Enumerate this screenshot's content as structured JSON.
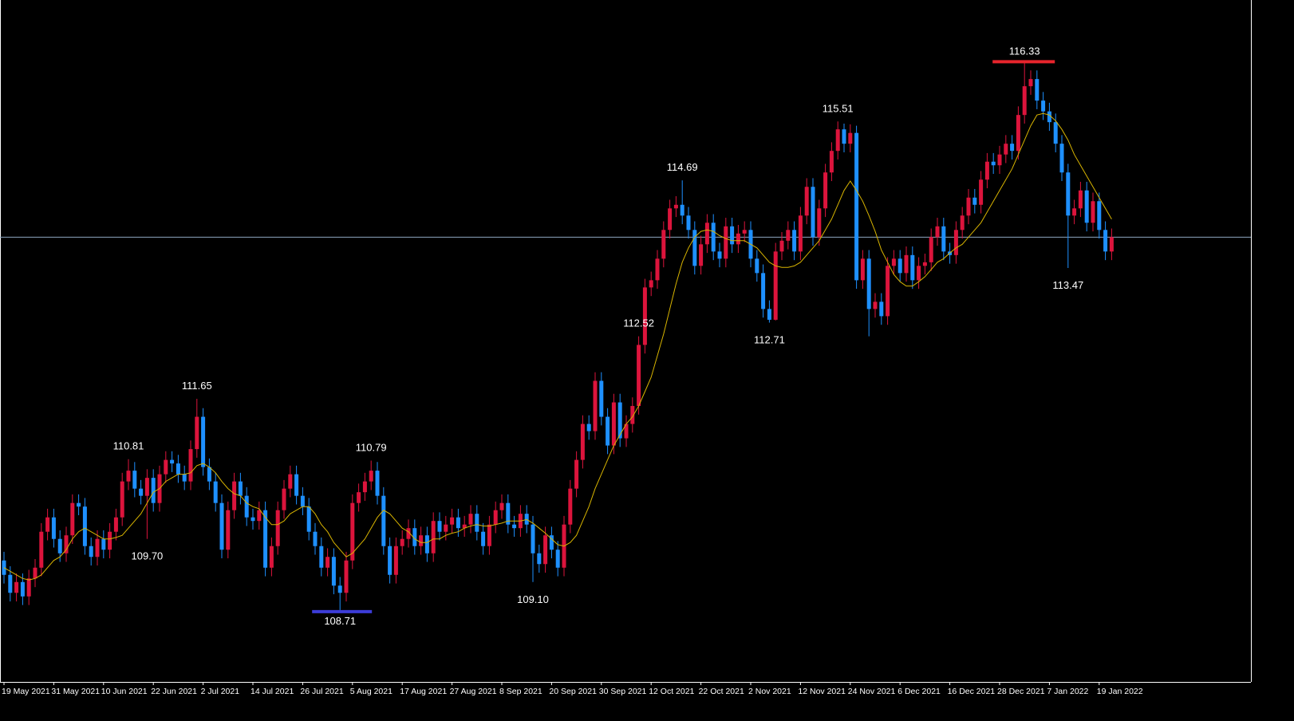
{
  "chart_data": {
    "type": "candlestick",
    "up_color": "#dc143c",
    "down_color": "#1e90ff",
    "ylim": [
      107.71,
      117.2
    ],
    "categories": [
      "19 May 2021",
      null,
      null,
      null,
      null,
      null,
      null,
      null,
      "31 May 2021",
      null,
      null,
      null,
      null,
      null,
      null,
      null,
      "10 Jun 2021",
      null,
      null,
      null,
      null,
      null,
      null,
      null,
      "22 Jun 2021",
      null,
      null,
      null,
      null,
      null,
      null,
      null,
      "2 Jul 2021",
      null,
      null,
      null,
      null,
      null,
      null,
      null,
      "14 Jul 2021",
      null,
      null,
      null,
      null,
      null,
      null,
      null,
      "26 Jul 2021",
      null,
      null,
      null,
      null,
      null,
      null,
      null,
      "5 Aug 2021",
      null,
      null,
      null,
      null,
      null,
      null,
      null,
      "17 Aug 2021",
      null,
      null,
      null,
      null,
      null,
      null,
      null,
      "27 Aug 2021",
      null,
      null,
      null,
      null,
      null,
      null,
      null,
      "8 Sep 2021",
      null,
      null,
      null,
      null,
      null,
      null,
      null,
      "20 Sep 2021",
      null,
      null,
      null,
      null,
      null,
      null,
      null,
      "30 Sep 2021",
      null,
      null,
      null,
      null,
      null,
      null,
      null,
      "12 Oct 2021",
      null,
      null,
      null,
      null,
      null,
      null,
      null,
      "22 Oct 2021",
      null,
      null,
      null,
      null,
      null,
      null,
      null,
      "2 Nov 2021",
      null,
      null,
      null,
      null,
      null,
      null,
      null,
      "12 Nov 2021",
      null,
      null,
      null,
      null,
      null,
      null,
      null,
      "24 Nov 2021",
      null,
      null,
      null,
      null,
      null,
      null,
      null,
      "6 Dec 2021",
      null,
      null,
      null,
      null,
      null,
      null,
      null,
      "16 Dec 2021",
      null,
      null,
      null,
      null,
      null,
      null,
      null,
      "28 Dec 2021",
      null,
      null,
      null,
      null,
      null,
      null,
      null,
      "7 Jan 2022",
      null,
      null,
      null,
      null,
      null,
      null,
      null,
      "19 Jan 2022",
      null,
      null
    ],
    "open": [
      109.4,
      109.2,
      108.95,
      109.1,
      108.9,
      109.15,
      109.3,
      109.8,
      110.0,
      109.7,
      109.5,
      109.75,
      110.2,
      110.15,
      109.6,
      109.45,
      109.7,
      109.55,
      109.8,
      110.0,
      110.5,
      110.65,
      110.4,
      110.3,
      110.55,
      110.2,
      110.6,
      110.8,
      110.75,
      110.6,
      110.5,
      110.95,
      111.4,
      110.7,
      110.5,
      110.2,
      109.55,
      110.1,
      110.5,
      110.3,
      110.0,
      109.95,
      110.1,
      109.3,
      109.6,
      110.1,
      110.4,
      110.6,
      110.3,
      110.15,
      109.8,
      109.6,
      109.3,
      109.45,
      109.05,
      108.95,
      109.4,
      110.2,
      110.35,
      110.5,
      110.65,
      110.3,
      109.6,
      109.2,
      109.6,
      109.7,
      109.85,
      109.6,
      109.75,
      109.5,
      109.95,
      109.8,
      109.9,
      110.0,
      109.85,
      109.9,
      110.05,
      109.8,
      109.6,
      109.9,
      110.1,
      110.2,
      109.9,
      109.85,
      110.05,
      109.9,
      109.5,
      109.35,
      109.75,
      109.55,
      109.3,
      109.9,
      110.4,
      110.8,
      111.3,
      111.2,
      111.9,
      111.4,
      111.0,
      111.6,
      111.1,
      111.3,
      111.55,
      112.4,
      113.2,
      113.3,
      113.6,
      114.0,
      114.3,
      114.35,
      114.2,
      114.0,
      113.5,
      113.8,
      114.1,
      113.7,
      113.6,
      114.05,
      113.8,
      113.95,
      114.0,
      113.6,
      113.4,
      112.9,
      112.75,
      113.7,
      113.85,
      114.0,
      113.7,
      114.2,
      114.6,
      113.9,
      114.3,
      114.8,
      115.1,
      115.4,
      115.2,
      115.35,
      113.3,
      113.6,
      112.9,
      113.0,
      112.8,
      113.5,
      113.6,
      113.4,
      113.65,
      113.3,
      113.5,
      113.55,
      113.9,
      114.05,
      113.7,
      113.65,
      114.0,
      114.2,
      114.45,
      114.35,
      114.7,
      114.95,
      114.9,
      115.05,
      115.2,
      115.1,
      115.6,
      116.0,
      116.1,
      115.8,
      115.65,
      115.5,
      115.2,
      114.8,
      114.2,
      114.3,
      114.55,
      114.1,
      114.4,
      114.0,
      113.7
    ],
    "high": [
      109.52,
      109.32,
      109.22,
      109.22,
      109.27,
      109.42,
      109.92,
      110.12,
      110.12,
      109.82,
      109.87,
      110.32,
      110.32,
      110.27,
      109.72,
      109.82,
      109.82,
      109.92,
      110.12,
      110.62,
      110.81,
      110.77,
      110.52,
      110.67,
      110.67,
      110.72,
      110.92,
      110.92,
      110.87,
      110.72,
      111.07,
      111.65,
      111.52,
      110.82,
      110.62,
      110.32,
      110.22,
      110.62,
      110.62,
      110.42,
      110.12,
      110.22,
      110.22,
      109.72,
      110.22,
      110.52,
      110.72,
      110.72,
      110.42,
      110.27,
      109.92,
      109.72,
      109.57,
      109.57,
      109.17,
      109.52,
      110.32,
      110.47,
      110.62,
      110.79,
      110.77,
      110.42,
      109.72,
      109.72,
      109.82,
      109.97,
      109.97,
      109.87,
      109.87,
      110.07,
      110.07,
      110.02,
      110.12,
      110.12,
      110.02,
      110.17,
      110.17,
      109.92,
      110.02,
      110.22,
      110.32,
      110.32,
      110.02,
      110.17,
      110.17,
      110.02,
      109.62,
      109.87,
      109.87,
      109.67,
      110.02,
      110.52,
      110.92,
      111.42,
      111.42,
      112.02,
      112.02,
      111.52,
      111.72,
      111.72,
      111.42,
      111.67,
      112.52,
      113.32,
      113.42,
      113.72,
      114.12,
      114.42,
      114.47,
      114.69,
      114.32,
      114.12,
      113.92,
      114.22,
      114.22,
      113.82,
      114.17,
      114.17,
      114.07,
      114.12,
      114.12,
      113.72,
      113.52,
      113.02,
      113.82,
      113.97,
      114.12,
      114.12,
      114.32,
      114.72,
      114.72,
      114.42,
      114.92,
      115.22,
      115.51,
      115.48,
      115.47,
      115.45,
      113.72,
      113.72,
      113.12,
      113.12,
      113.62,
      113.72,
      113.72,
      113.77,
      113.77,
      113.62,
      113.67,
      114.02,
      114.17,
      114.17,
      113.82,
      114.12,
      114.32,
      114.57,
      114.57,
      114.82,
      115.07,
      115.07,
      115.17,
      115.32,
      115.32,
      115.72,
      116.33,
      116.22,
      116.22,
      115.92,
      115.77,
      115.62,
      115.32,
      114.92,
      114.42,
      114.67,
      114.67,
      114.52,
      114.52,
      114.12,
      114.02
    ],
    "low": [
      109.08,
      108.83,
      108.83,
      108.78,
      108.78,
      109.03,
      109.18,
      109.68,
      109.58,
      109.38,
      109.38,
      109.63,
      110.03,
      109.48,
      109.33,
      109.33,
      109.43,
      109.43,
      109.68,
      109.88,
      110.38,
      110.28,
      110.18,
      109.7,
      110.08,
      110.08,
      110.48,
      110.63,
      110.48,
      110.38,
      110.38,
      110.83,
      110.58,
      110.38,
      110.08,
      109.43,
      109.43,
      109.98,
      110.18,
      109.88,
      109.83,
      109.83,
      109.18,
      109.18,
      109.48,
      109.98,
      110.28,
      110.18,
      110.03,
      109.68,
      109.48,
      109.18,
      109.18,
      108.93,
      108.71,
      108.83,
      109.28,
      110.08,
      110.23,
      110.38,
      110.18,
      109.48,
      109.08,
      109.08,
      109.48,
      109.58,
      109.48,
      109.48,
      109.38,
      109.38,
      109.68,
      109.68,
      109.78,
      109.73,
      109.73,
      109.78,
      109.68,
      109.48,
      109.48,
      109.78,
      109.98,
      109.78,
      109.73,
      109.73,
      109.78,
      109.1,
      109.23,
      109.23,
      109.43,
      109.18,
      109.18,
      109.78,
      110.28,
      110.68,
      111.08,
      111.08,
      111.28,
      110.88,
      110.88,
      110.98,
      110.98,
      111.18,
      111.43,
      112.28,
      113.08,
      113.18,
      113.48,
      113.88,
      114.18,
      114.08,
      113.88,
      113.38,
      113.38,
      113.68,
      113.58,
      113.48,
      113.48,
      113.68,
      113.68,
      113.83,
      113.48,
      113.28,
      112.78,
      112.71,
      112.74,
      113.58,
      113.73,
      113.58,
      113.58,
      114.08,
      113.78,
      113.78,
      114.18,
      114.68,
      114.98,
      115.08,
      115.08,
      113.18,
      113.18,
      112.52,
      112.78,
      112.68,
      112.68,
      113.38,
      113.28,
      113.28,
      113.18,
      113.18,
      113.38,
      113.43,
      113.78,
      113.58,
      113.53,
      113.53,
      113.88,
      114.08,
      114.23,
      114.23,
      114.58,
      114.78,
      114.78,
      114.93,
      114.98,
      114.98,
      115.48,
      115.88,
      115.68,
      115.53,
      115.38,
      115.08,
      114.68,
      113.47,
      114.08,
      114.18,
      113.98,
      113.98,
      113.88,
      113.58,
      113.58
    ],
    "close": [
      109.2,
      108.95,
      109.1,
      108.9,
      109.15,
      109.3,
      109.8,
      110.0,
      109.7,
      109.5,
      109.75,
      110.2,
      110.15,
      109.6,
      109.45,
      109.7,
      109.55,
      109.8,
      110.0,
      110.5,
      110.65,
      110.4,
      110.3,
      110.55,
      110.2,
      110.6,
      110.8,
      110.75,
      110.6,
      110.5,
      110.95,
      111.4,
      110.7,
      110.5,
      110.2,
      109.55,
      110.1,
      110.5,
      110.3,
      110.0,
      109.95,
      110.1,
      109.3,
      109.6,
      110.1,
      110.4,
      110.6,
      110.3,
      110.15,
      109.8,
      109.6,
      109.3,
      109.45,
      109.05,
      108.95,
      109.4,
      110.2,
      110.35,
      110.5,
      110.65,
      110.3,
      109.6,
      109.2,
      109.6,
      109.7,
      109.85,
      109.6,
      109.75,
      109.5,
      109.95,
      109.8,
      109.9,
      110.0,
      109.85,
      109.9,
      110.05,
      109.8,
      109.6,
      109.9,
      110.1,
      110.2,
      109.9,
      109.85,
      110.05,
      109.9,
      109.5,
      109.35,
      109.75,
      109.55,
      109.3,
      109.9,
      110.4,
      110.8,
      111.3,
      111.2,
      111.9,
      111.4,
      111.0,
      111.6,
      111.1,
      111.3,
      111.55,
      112.4,
      113.2,
      113.3,
      113.6,
      114.0,
      114.3,
      114.35,
      114.2,
      114.0,
      113.5,
      113.8,
      114.1,
      113.7,
      113.6,
      114.05,
      113.8,
      113.95,
      114.0,
      113.6,
      113.4,
      112.9,
      112.75,
      113.7,
      113.85,
      114.0,
      113.7,
      114.2,
      114.6,
      113.9,
      114.3,
      114.8,
      115.1,
      115.4,
      115.2,
      115.35,
      113.3,
      113.6,
      112.9,
      113.0,
      112.8,
      113.5,
      113.6,
      113.4,
      113.65,
      113.3,
      113.5,
      113.55,
      113.9,
      114.05,
      113.7,
      113.65,
      114.0,
      114.2,
      114.45,
      114.35,
      114.7,
      114.95,
      114.9,
      115.05,
      115.2,
      115.1,
      115.6,
      116.0,
      116.1,
      115.8,
      115.65,
      115.5,
      115.2,
      114.8,
      114.2,
      114.3,
      114.55,
      114.1,
      114.4,
      114.0,
      113.7,
      113.9
    ],
    "ma": {
      "color": "#d8b400",
      "values": [
        109.3,
        109.25,
        109.2,
        109.15,
        109.13,
        109.15,
        109.2,
        109.3,
        109.4,
        109.45,
        109.55,
        109.7,
        109.8,
        109.85,
        109.8,
        109.75,
        109.7,
        109.7,
        109.72,
        109.75,
        109.85,
        109.95,
        110.05,
        110.2,
        110.35,
        110.4,
        110.5,
        110.55,
        110.6,
        110.6,
        110.62,
        110.72,
        110.75,
        110.7,
        110.62,
        110.5,
        110.4,
        110.33,
        110.3,
        110.2,
        110.15,
        110.12,
        110.0,
        109.9,
        109.9,
        109.95,
        110.05,
        110.1,
        110.15,
        110.15,
        110.05,
        109.9,
        109.8,
        109.65,
        109.55,
        109.45,
        109.5,
        109.6,
        109.7,
        109.85,
        110.0,
        110.1,
        110.05,
        109.95,
        109.85,
        109.8,
        109.7,
        109.65,
        109.65,
        109.7,
        109.7,
        109.75,
        109.78,
        109.8,
        109.85,
        109.88,
        109.9,
        109.88,
        109.88,
        109.9,
        109.92,
        109.95,
        109.95,
        109.95,
        109.97,
        109.92,
        109.85,
        109.78,
        109.7,
        109.62,
        109.6,
        109.65,
        109.75,
        109.95,
        110.15,
        110.4,
        110.6,
        110.8,
        111.0,
        111.15,
        111.3,
        111.4,
        111.55,
        111.75,
        111.95,
        112.25,
        112.55,
        112.9,
        113.25,
        113.55,
        113.75,
        113.9,
        113.98,
        114.0,
        113.98,
        113.92,
        113.88,
        113.85,
        113.85,
        113.85,
        113.8,
        113.75,
        113.65,
        113.55,
        113.5,
        113.48,
        113.48,
        113.5,
        113.55,
        113.65,
        113.75,
        113.85,
        114.0,
        114.15,
        114.35,
        114.55,
        114.68,
        114.55,
        114.4,
        114.2,
        113.98,
        113.72,
        113.55,
        113.38,
        113.28,
        113.22,
        113.22,
        113.28,
        113.35,
        113.45,
        113.55,
        113.6,
        113.68,
        113.75,
        113.8,
        113.9,
        114.0,
        114.1,
        114.25,
        114.4,
        114.55,
        114.7,
        114.85,
        115.05,
        115.25,
        115.45,
        115.6,
        115.62,
        115.6,
        115.52,
        115.4,
        115.25,
        115.05,
        114.9,
        114.75,
        114.6,
        114.45,
        114.3,
        114.15
      ]
    },
    "price_line": {
      "value": 113.9,
      "color": "#8ea6c0"
    },
    "annotations": [
      {
        "value": 116.33,
        "label": "116.33"
      },
      {
        "value": 115.51,
        "label": "115.51"
      },
      {
        "value": 114.69,
        "label": "114.69"
      },
      {
        "value": 113.47,
        "label": "113.47"
      },
      {
        "value": 112.71,
        "label": "112.71"
      },
      {
        "value": 112.52,
        "label": "112.52"
      },
      {
        "value": 111.65,
        "label": "111.65"
      },
      {
        "value": 110.81,
        "label": "110.81"
      },
      {
        "value": 110.79,
        "label": "110.79"
      },
      {
        "value": 109.7,
        "label": "109.70"
      },
      {
        "value": 109.1,
        "label": "109.10"
      },
      {
        "value": 108.71,
        "label": "108.71"
      }
    ],
    "extreme_colors": {
      "max": "#e8242c",
      "min": "#3c3cd8"
    }
  }
}
